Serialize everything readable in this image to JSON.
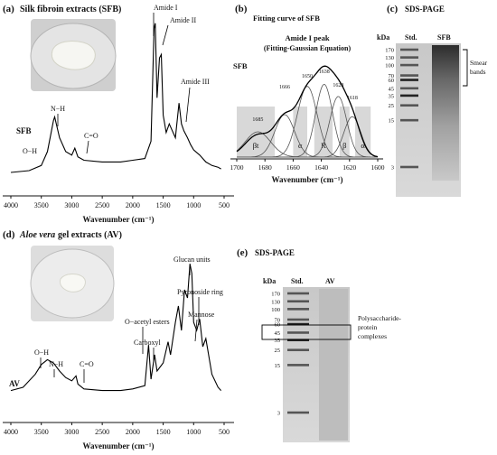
{
  "panel_a": {
    "label": "(a)",
    "title": "Silk fibroin extracts (SFB)",
    "xlabel": "Wavenumber (cm⁻¹)",
    "sample_name": "SFB",
    "ticks": [
      "4000",
      "3500",
      "3000",
      "2500",
      "2000",
      "1500",
      "1000",
      "500"
    ],
    "annotations": [
      "Amide I",
      "Amide II",
      "Amide III",
      "N−H",
      "O−H",
      "C=O"
    ]
  },
  "panel_b": {
    "label": "(b)",
    "title": "Fitting curve of SFB",
    "subtitle_line1": "Amide I peak",
    "subtitle_line2": "(Fitting-Gaussian Equation)",
    "sample_name": "SFB",
    "xlabel": "Wavenumber (cm⁻¹)",
    "ticks": [
      "1700",
      "1680",
      "1660",
      "1640",
      "1620",
      "1600"
    ],
    "peak_labels": [
      "1685",
      "1666",
      "1650",
      "1638",
      "1628",
      "1618"
    ],
    "region_labels": [
      "βt",
      "α",
      "R",
      "β",
      "α"
    ]
  },
  "panel_c": {
    "label": "(c)",
    "title": "SDS-PAGE",
    "kda": "kDa",
    "lane1": "Std.",
    "lane2": "SFB",
    "markers": [
      "170",
      "130",
      "100",
      "70",
      "60",
      "45",
      "35",
      "25",
      "15",
      "3"
    ],
    "annotation_line1": "Smear",
    "annotation_line2": "bands"
  },
  "panel_d": {
    "label": "(d)",
    "title_italic": "Aloe vera",
    "title_rest": " gel extracts (AV)",
    "xlabel": "Wavenumber (cm⁻¹)",
    "sample_name": "AV",
    "ticks": [
      "4000",
      "3500",
      "3000",
      "2500",
      "2000",
      "1500",
      "1000",
      "500"
    ],
    "annotations": [
      "Glucan units",
      "Pyronoside ring",
      "Mannose",
      "O−acetyl esters",
      "Carboxyl",
      "O−H",
      "N−H",
      "C=O"
    ]
  },
  "panel_e": {
    "label": "(e)",
    "title": "SDS-PAGE",
    "kda": "kDa",
    "lane1": "Std.",
    "lane2": "AV",
    "markers": [
      "170",
      "130",
      "100",
      "70",
      "60",
      "45",
      "35",
      "25",
      "15",
      "3"
    ],
    "annotation_line1": "Polysaccharide-",
    "annotation_line2": "protein",
    "annotation_line3": "complexes"
  },
  "chart_data": [
    {
      "type": "line",
      "title": "Silk fibroin extracts (SFB)",
      "xlabel": "Wavenumber (cm⁻¹)",
      "xlim": [
        4000,
        500
      ],
      "series": [
        {
          "name": "SFB",
          "x": [
            4000,
            3700,
            3500,
            3400,
            3300,
            3280,
            3200,
            3100,
            3000,
            2950,
            2900,
            2800,
            2500,
            2200,
            2000,
            1800,
            1700,
            1650,
            1630,
            1600,
            1560,
            1530,
            1500,
            1450,
            1400,
            1300,
            1240,
            1200,
            1160,
            1100,
            1050,
            1000,
            900,
            800,
            700,
            600,
            550
          ],
          "y": [
            0.12,
            0.13,
            0.16,
            0.24,
            0.42,
            0.44,
            0.32,
            0.24,
            0.22,
            0.26,
            0.21,
            0.19,
            0.18,
            0.18,
            0.19,
            0.2,
            0.3,
            0.95,
            0.98,
            0.55,
            0.78,
            0.8,
            0.45,
            0.35,
            0.4,
            0.32,
            0.52,
            0.4,
            0.36,
            0.32,
            0.28,
            0.25,
            0.22,
            0.18,
            0.16,
            0.15,
            0.14
          ]
        }
      ],
      "annotations": [
        "Amide I",
        "Amide II",
        "Amide III",
        "N−H",
        "O−H",
        "C=O"
      ]
    },
    {
      "type": "area",
      "title": "Amide I peak (Fitting-Gaussian Equation)",
      "xlabel": "Wavenumber (cm⁻¹)",
      "xlim": [
        1700,
        1600
      ],
      "peaks": [
        1685,
        1666,
        1650,
        1638,
        1628,
        1618
      ],
      "regions": [
        {
          "label": "βt",
          "from": 1700,
          "to": 1673
        },
        {
          "label": "α",
          "from": 1660,
          "to": 1650
        },
        {
          "label": "R",
          "from": 1645,
          "to": 1632
        },
        {
          "label": "β",
          "from": 1627,
          "to": 1620
        },
        {
          "label": "α",
          "from": 1616,
          "to": 1605
        }
      ]
    },
    {
      "type": "table",
      "title": "SDS-PAGE",
      "lanes": [
        "Std.",
        "SFB"
      ],
      "markers_kda": [
        170,
        130,
        100,
        70,
        60,
        45,
        35,
        25,
        15,
        3
      ],
      "annotation": "Smear bands"
    },
    {
      "type": "line",
      "title": "Aloe vera gel extracts (AV)",
      "xlabel": "Wavenumber (cm⁻¹)",
      "xlim": [
        4000,
        500
      ],
      "series": [
        {
          "name": "AV",
          "x": [
            4000,
            3800,
            3600,
            3500,
            3400,
            3300,
            3200,
            3100,
            3000,
            2930,
            2900,
            2800,
            2500,
            2200,
            2000,
            1800,
            1740,
            1700,
            1640,
            1600,
            1500,
            1420,
            1380,
            1300,
            1250,
            1200,
            1150,
            1100,
            1060,
            1030,
            1000,
            950,
            900,
            850,
            800,
            700,
            600,
            550
          ],
          "y": [
            0.18,
            0.2,
            0.28,
            0.34,
            0.37,
            0.35,
            0.3,
            0.26,
            0.24,
            0.27,
            0.22,
            0.19,
            0.18,
            0.18,
            0.19,
            0.21,
            0.46,
            0.25,
            0.4,
            0.3,
            0.35,
            0.48,
            0.4,
            0.6,
            0.7,
            0.55,
            0.8,
            0.75,
            0.96,
            0.9,
            0.6,
            0.55,
            0.62,
            0.45,
            0.5,
            0.28,
            0.2,
            0.18
          ]
        }
      ],
      "annotations": [
        "Glucan units",
        "Pyronoside ring",
        "Mannose",
        "O−acetyl esters",
        "Carboxyl",
        "O−H",
        "N−H",
        "C=O"
      ]
    },
    {
      "type": "table",
      "title": "SDS-PAGE",
      "lanes": [
        "Std.",
        "AV"
      ],
      "markers_kda": [
        170,
        130,
        100,
        70,
        60,
        45,
        35,
        25,
        15,
        3
      ],
      "annotation": "Polysaccharide-protein complexes"
    }
  ]
}
